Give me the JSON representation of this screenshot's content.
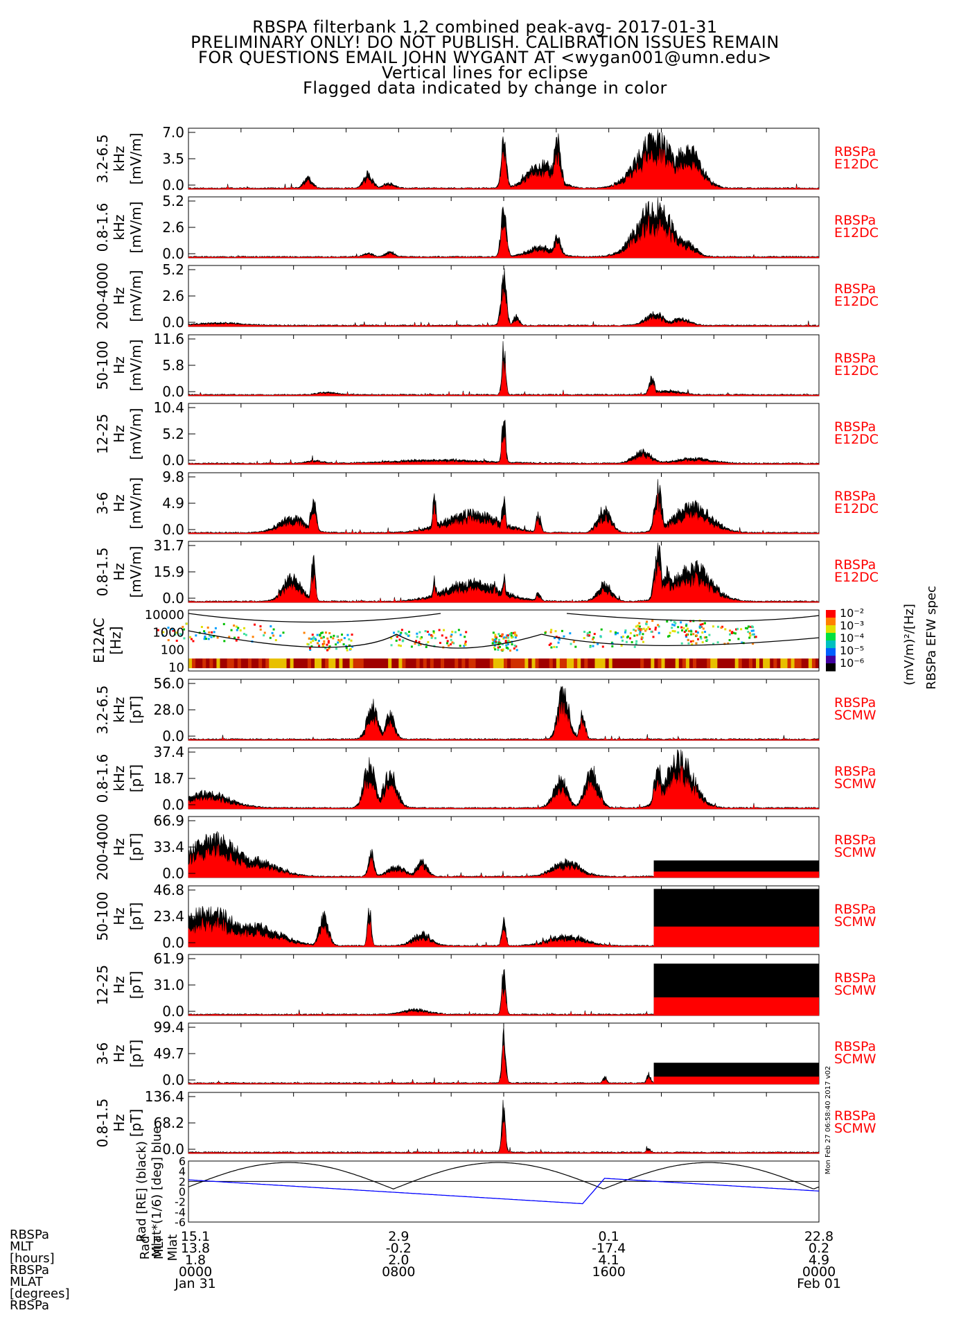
{
  "title_lines": [
    "RBSPA filterbank 1,2 combined peak-avg- 2017-01-31",
    "PRELIMINARY ONLY! DO NOT PUBLISH. CALIBRATION ISSUES REMAIN",
    "FOR QUESTIONS EMAIL JOHN WYGANT AT <wygan001@umn.edu>",
    "Vertical lines for eclipse",
    "Flagged data indicated by change in color"
  ],
  "colors": {
    "peak": "#000000",
    "avg": "#ff0000",
    "ephem_blue": "#0000ff"
  },
  "chart_data": {
    "type": "line",
    "panels": [
      {
        "ylabel": [
          "3.2-6.5",
          "kHz",
          "[mV/m]"
        ],
        "ticks": [
          "7.0",
          "3.5",
          "0.0"
        ],
        "ylim": [
          0,
          7.0
        ],
        "right": [
          "RBSPa",
          "E12DC"
        ],
        "profile": "A"
      },
      {
        "ylabel": [
          "0.8-1.6",
          "kHz",
          "[mV/m]"
        ],
        "ticks": [
          "5.2",
          "2.6",
          "0.0"
        ],
        "ylim": [
          0,
          5.2
        ],
        "right": [
          "RBSPa",
          "E12DC"
        ],
        "profile": "B"
      },
      {
        "ylabel": [
          "200-4000",
          "Hz",
          "[mV/m]"
        ],
        "ticks": [
          "5.2",
          "2.6",
          "0.0"
        ],
        "ylim": [
          0,
          5.2
        ],
        "right": [
          "RBSPa",
          "E12DC"
        ],
        "profile": "C"
      },
      {
        "ylabel": [
          "50-100",
          "Hz",
          "[mV/m]"
        ],
        "ticks": [
          "11.6",
          "5.8",
          "0.0"
        ],
        "ylim": [
          0,
          11.6
        ],
        "right": [
          "RBSPa",
          "E12DC"
        ],
        "profile": "D"
      },
      {
        "ylabel": [
          "12-25",
          "Hz",
          "[mV/m]"
        ],
        "ticks": [
          "10.4",
          "5.2",
          "0.0"
        ],
        "ylim": [
          0,
          10.4
        ],
        "right": [
          "RBSPa",
          "E12DC"
        ],
        "profile": "E"
      },
      {
        "ylabel": [
          "3-6",
          "Hz",
          "[mV/m]"
        ],
        "ticks": [
          "9.8",
          "4.9",
          "0.0"
        ],
        "ylim": [
          0,
          9.8
        ],
        "right": [
          "RBSPa",
          "E12DC"
        ],
        "profile": "F"
      },
      {
        "ylabel": [
          "0.8-1.5",
          "Hz",
          "[mV/m]"
        ],
        "ticks": [
          "31.7",
          "15.9",
          "0.0"
        ],
        "ylim": [
          0,
          31.7
        ],
        "right": [
          "RBSPa",
          "E12DC"
        ],
        "profile": "G"
      },
      {
        "kind": "spectrogram",
        "ylabel": [
          "E12AC",
          "[Hz]"
        ],
        "ticks": [
          "10000",
          "1000",
          "100",
          "10"
        ],
        "colorbar_ticks": [
          "10⁻²",
          "10⁻³",
          "10⁻⁴",
          "10⁻⁵",
          "10⁻⁶"
        ],
        "colorbar_label": "(mV/m)²/[Hz]",
        "right_label": "RBSPa EFW spec"
      },
      {
        "ylabel": [
          "3.2-6.5",
          "kHz",
          "[pT]"
        ],
        "ticks": [
          "56.0",
          "28.0",
          "0.0"
        ],
        "ylim": [
          0,
          56.0
        ],
        "right": [
          "RBSPa",
          "SCMW"
        ],
        "profile": "H"
      },
      {
        "ylabel": [
          "0.8-1.6",
          "kHz",
          "[pT]"
        ],
        "ticks": [
          "37.4",
          "18.7",
          "0.0"
        ],
        "ylim": [
          0,
          37.4
        ],
        "right": [
          "RBSPa",
          "SCMW"
        ],
        "profile": "I"
      },
      {
        "ylabel": [
          "200-4000",
          "Hz",
          "[pT]"
        ],
        "ticks": [
          "66.9",
          "33.4",
          "0.0"
        ],
        "ylim": [
          0,
          66.9
        ],
        "right": [
          "RBSPa",
          "SCMW"
        ],
        "profile": "J"
      },
      {
        "ylabel": [
          "50-100",
          "Hz",
          "[pT]"
        ],
        "ticks": [
          "46.8",
          "23.4",
          "0.0"
        ],
        "ylim": [
          0,
          46.8
        ],
        "right": [
          "RBSPa",
          "SCMW"
        ],
        "profile": "K"
      },
      {
        "ylabel": [
          "12-25",
          "Hz",
          "[pT]"
        ],
        "ticks": [
          "61.9",
          "31.0",
          "0.0"
        ],
        "ylim": [
          0,
          61.9
        ],
        "right": [
          "RBSPa",
          "SCMW"
        ],
        "profile": "L"
      },
      {
        "ylabel": [
          "3-6",
          "Hz",
          "[pT]"
        ],
        "ticks": [
          "99.4",
          "49.7",
          "0.0"
        ],
        "ylim": [
          0,
          99.4
        ],
        "right": [
          "RBSPa",
          "SCMW"
        ],
        "profile": "M"
      },
      {
        "ylabel": [
          "0.8-1.5",
          "Hz",
          "[pT]"
        ],
        "ticks": [
          "136.4",
          "68.2",
          "0.0"
        ],
        "ylim": [
          0,
          136.4
        ],
        "right": [
          "RBSPa",
          "SCMW"
        ],
        "profile": "N"
      },
      {
        "kind": "ephemeris",
        "ylabel": [
          "Rad [RE] (black)",
          "Mlat*(1/6) [deg] blue"
        ],
        "ticks": [
          "6",
          "4",
          "2",
          "0",
          "-2",
          "-4",
          "-6"
        ],
        "ylim": [
          -6,
          6
        ]
      }
    ],
    "timestamp_label": "Mon Feb 27 06:58:40 2017 v02",
    "x_axis": {
      "left_labels": [
        "RBSPa",
        "MLT",
        "[hours]",
        "RBSPa",
        "MLAT",
        "[degrees]",
        "RBSPa"
      ],
      "row_labels": [
        "Rad",
        "MLT",
        "Mlat"
      ],
      "columns": [
        {
          "rad": "15.1",
          "mlt": "13.8",
          "mlat": "1.8",
          "time": "0000",
          "date": "Jan 31"
        },
        {
          "rad": "2.9",
          "mlt": "-0.2",
          "mlat": "2.0",
          "time": "0800",
          "date": ""
        },
        {
          "rad": "0.1",
          "mlt": "-17.4",
          "mlat": "4.1",
          "time": "1600",
          "date": ""
        },
        {
          "rad": "22.8",
          "mlt": "0.2",
          "mlat": "4.9",
          "time": "0000",
          "date": "Feb 01"
        }
      ]
    }
  }
}
